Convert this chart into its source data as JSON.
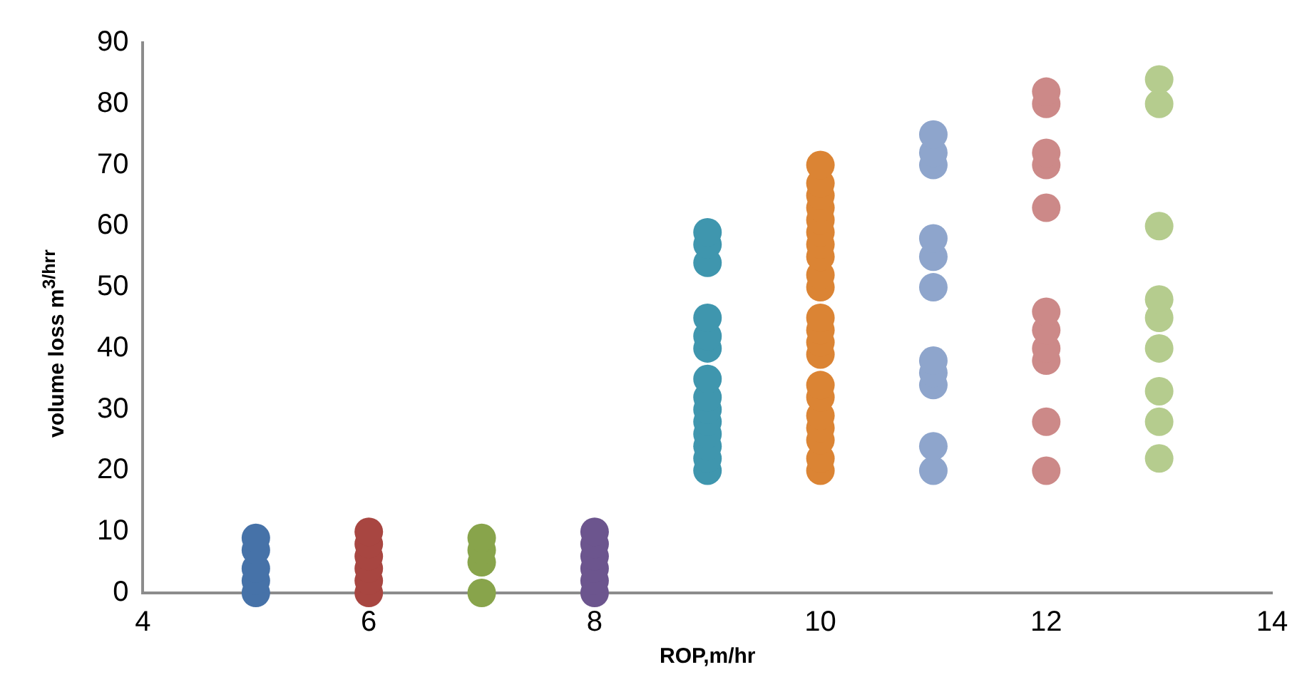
{
  "chart_data": {
    "type": "scatter",
    "xlabel": "ROP,m/hr",
    "ylabel": "volume loss  m$^{3/hrr}$",
    "xlim": [
      4,
      14
    ],
    "xticks": [
      4,
      6,
      8,
      10,
      12,
      14
    ],
    "ylim": [
      0,
      90
    ],
    "yticks": [
      0,
      10,
      20,
      30,
      40,
      50,
      60,
      70,
      80,
      90
    ],
    "grid": false,
    "legend": false,
    "marker": "circle",
    "series": [
      {
        "color": "#4672a8",
        "x": [
          5,
          5,
          5,
          5,
          5
        ],
        "values": [
          0,
          2,
          4,
          7,
          9
        ]
      },
      {
        "color": "#a84641",
        "x": [
          6,
          6,
          6,
          6,
          6,
          6
        ],
        "values": [
          0,
          2,
          4,
          6,
          8,
          10
        ]
      },
      {
        "color": "#88a44b",
        "x": [
          7,
          7,
          7,
          7
        ],
        "values": [
          0,
          5,
          7,
          9
        ]
      },
      {
        "color": "#6c558e",
        "x": [
          8,
          8,
          8,
          8,
          8,
          8
        ],
        "values": [
          0,
          2,
          4,
          6,
          8,
          10
        ]
      },
      {
        "color": "#3f96ae",
        "x": [
          9,
          9,
          9,
          9,
          9,
          9,
          9,
          9,
          9,
          9,
          9,
          9,
          9,
          9
        ],
        "values": [
          20,
          22,
          24,
          26,
          28,
          30,
          32,
          35,
          40,
          42,
          45,
          54,
          57,
          59
        ]
      },
      {
        "color": "#db8434",
        "x": [
          10,
          10,
          10,
          10,
          10,
          10,
          10,
          10,
          10,
          10,
          10,
          10,
          10,
          10,
          10,
          10,
          10,
          10,
          10,
          10,
          10
        ],
        "values": [
          20,
          22,
          25,
          27,
          29,
          32,
          34,
          39,
          41,
          43,
          45,
          50,
          52,
          55,
          57,
          59,
          61,
          63,
          65,
          67,
          70
        ]
      },
      {
        "color": "#8ea5cc",
        "x": [
          11,
          11,
          11,
          11,
          11,
          11,
          11,
          11,
          11,
          11,
          11
        ],
        "values": [
          20,
          24,
          34,
          36,
          38,
          50,
          55,
          58,
          70,
          72,
          75
        ]
      },
      {
        "color": "#cc8988",
        "x": [
          12,
          12,
          12,
          12,
          12,
          12,
          12,
          12,
          12,
          12,
          12
        ],
        "values": [
          20,
          28,
          38,
          40,
          43,
          46,
          63,
          70,
          72,
          80,
          82
        ]
      },
      {
        "color": "#b5cc8e",
        "x": [
          13,
          13,
          13,
          13,
          13,
          13,
          13,
          13,
          13
        ],
        "values": [
          22,
          28,
          33,
          40,
          45,
          48,
          60,
          80,
          84
        ]
      }
    ]
  }
}
